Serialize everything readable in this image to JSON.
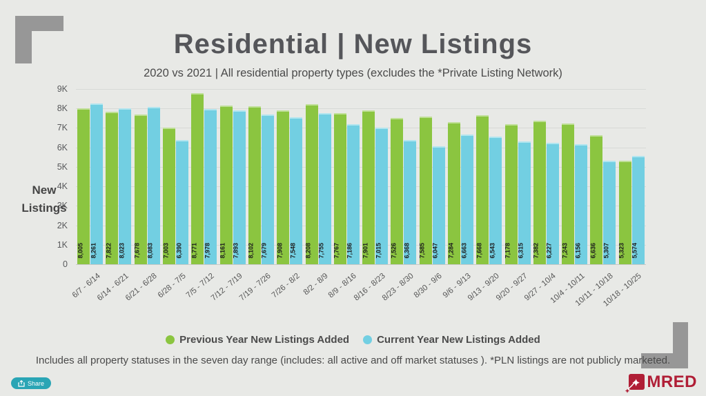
{
  "header": {
    "title": "Residential | New Listings",
    "subtitle": "2020 vs 2021 | All residential property types (excludes the *Private Listing Network)"
  },
  "chart_data": {
    "type": "bar",
    "title": "Residential | New Listings",
    "subtitle": "2020 vs 2021 | All residential property types (excludes the *Private Listing Network)",
    "xlabel": "",
    "ylabel": "New Listings",
    "ylim": [
      0,
      9000
    ],
    "yticks": [
      0,
      1000,
      2000,
      3000,
      4000,
      5000,
      6000,
      7000,
      8000,
      9000
    ],
    "ytick_labels": [
      "0",
      "1K",
      "2K",
      "3K",
      "4K",
      "5K",
      "6K",
      "7K",
      "8K",
      "9K"
    ],
    "grid": true,
    "legend_position": "bottom",
    "bar_value_labels": true,
    "categories": [
      "6/7 - 6/14",
      "6/14 - 6/21",
      "6/21 - 6/28",
      "6/28 - 7/5",
      "7/5 - 7/12",
      "7/12 - 7/19",
      "7/19 - 7/26",
      "7/26 - 8/2",
      "8/2 - 8/9",
      "8/9 - 8/16",
      "8/16 - 8/23",
      "8/23 - 8/30",
      "8/30 - 9/6",
      "9/6 - 9/13",
      "9/13 - 9/20",
      "9/20 - 9/27",
      "9/27 - 10/4",
      "10/4 - 10/11",
      "10/11 - 10/18",
      "10/18 - 10/25"
    ],
    "series": [
      {
        "name": "Previous Year New Listings Added",
        "color": "#8bc540",
        "values": [
          8005,
          7822,
          7678,
          7003,
          8771,
          8161,
          8102,
          7908,
          8208,
          7767,
          7901,
          7526,
          7585,
          7284,
          7668,
          7178,
          7382,
          7243,
          6636,
          5323
        ]
      },
      {
        "name": "Current Year New Listings Added",
        "color": "#72cfe2",
        "values": [
          8261,
          8023,
          8083,
          6390,
          7978,
          7893,
          7679,
          7548,
          7755,
          7186,
          7015,
          6368,
          6047,
          6663,
          6543,
          6315,
          6227,
          6156,
          5307,
          5574
        ]
      }
    ]
  },
  "footer": {
    "note": "Includes all property statuses in the seven day range (includes:  all active and off market statuses ).  *PLN listings are not publicly marketed.",
    "share_label": "Share",
    "brand": "MRED"
  },
  "colors": {
    "background": "#e8e9e6",
    "title_gray": "#55565a",
    "previous_year_green": "#8bc540",
    "current_year_blue": "#72cfe2",
    "decor_gray": "#979797",
    "share_teal": "#2aa5b5",
    "brand_red": "#b01e36"
  }
}
